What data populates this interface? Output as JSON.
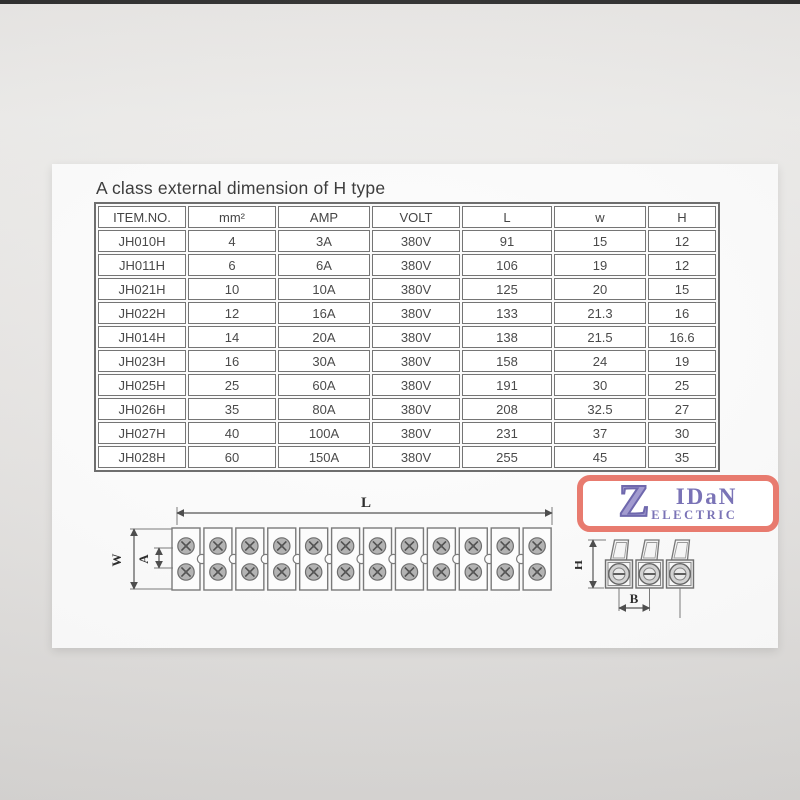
{
  "title": "A class external dimension of H type",
  "table": {
    "headers": [
      "ITEM.NO.",
      "mm²",
      "AMP",
      "VOLT",
      "L",
      "w",
      "H"
    ],
    "rows": [
      [
        "JH010H",
        "4",
        "3A",
        "380V",
        "91",
        "15",
        "12"
      ],
      [
        "JH011H",
        "6",
        "6A",
        "380V",
        "106",
        "19",
        "12"
      ],
      [
        "JH021H",
        "10",
        "10A",
        "380V",
        "125",
        "20",
        "15"
      ],
      [
        "JH022H",
        "12",
        "16A",
        "380V",
        "133",
        "21.3",
        "16"
      ],
      [
        "JH014H",
        "14",
        "20A",
        "380V",
        "138",
        "21.5",
        "16.6"
      ],
      [
        "JH023H",
        "16",
        "30A",
        "380V",
        "158",
        "24",
        "19"
      ],
      [
        "JH025H",
        "25",
        "60A",
        "380V",
        "191",
        "30",
        "25"
      ],
      [
        "JH026H",
        "35",
        "80A",
        "380V",
        "208",
        "32.5",
        "27"
      ],
      [
        "JH027H",
        "40",
        "100A",
        "380V",
        "231",
        "37",
        "30"
      ],
      [
        "JH028H",
        "60",
        "150A",
        "380V",
        "255",
        "45",
        "35"
      ]
    ]
  },
  "diagrams": {
    "top_view": {
      "poles": 12,
      "label_length": "L",
      "label_width": "W",
      "label_pitch": "A"
    },
    "side_view": {
      "poles": 3,
      "label_height": "H",
      "label_pitch": "B"
    }
  },
  "logo": {
    "initial": "Z",
    "name_rest": "IDaN",
    "subtitle": "ELECTRIC",
    "border_color": "#e87b6f",
    "text_color": "#7a73b6"
  },
  "colors": {
    "table_line": "#6e6e6e",
    "drawing_line": "#6f6f6f",
    "top_strip": "#1f1f1f"
  }
}
